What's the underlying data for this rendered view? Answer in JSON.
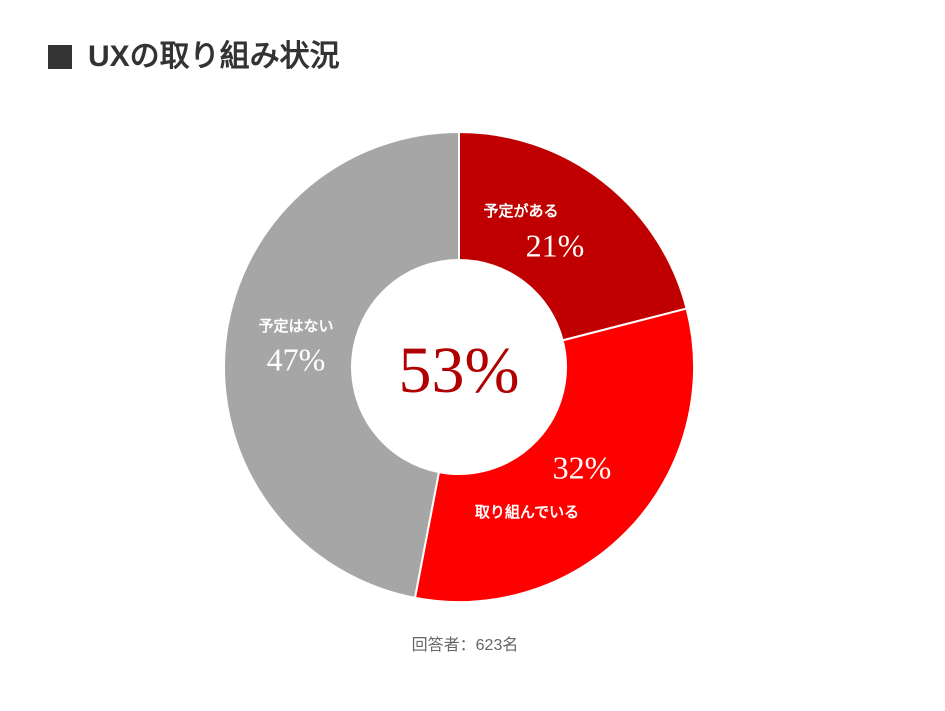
{
  "chart_data": {
    "type": "donut",
    "title": "UXの取り組み状況",
    "categories": [
      "予定がある",
      "取り組んでいる",
      "予定はない"
    ],
    "values": [
      21,
      32,
      47
    ],
    "value_labels": [
      "21%",
      "32%",
      "47%"
    ],
    "colors": [
      "#c00000",
      "#ff0000",
      "#a6a6a6"
    ],
    "center_value": 53,
    "center_label": "53%",
    "note": "回答者：623名"
  }
}
